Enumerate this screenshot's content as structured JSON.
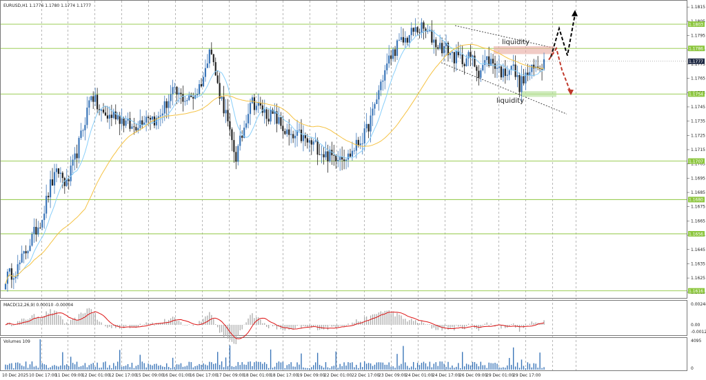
{
  "header": {
    "symbol_info": "EURUSD,H1  1.1776 1.1780 1.1774 1.1777"
  },
  "colors": {
    "bull": "#3a75b8",
    "bear": "#222222",
    "ma_fast": "#87cefa",
    "ma_slow": "#f5c242",
    "level": "#8dc63f",
    "macd_signal": "#d11",
    "volume": "#3a75b8",
    "arrow_up": "#000000",
    "arrow_down": "#c0392b"
  },
  "chart_data": [
    {
      "type": "candlestick",
      "title": "EURUSD,H1",
      "x_ticks": [
        "10 Dec 2025",
        "10 Dec 17:00",
        "11 Dec 09:00",
        "12 Dec 01:00",
        "12 Dec 17:00",
        "15 Dec 09:00",
        "16 Dec 01:00",
        "16 Dec 17:00",
        "17 Dec 09:00",
        "18 Dec 01:00",
        "18 Dec 17:00",
        "19 Dec 09:00",
        "22 Dec 01:00",
        "22 Dec 17:00",
        "23 Dec 09:00",
        "24 Dec 01:00",
        "24 Dec 17:00",
        "26 Dec 09:00",
        "29 Dec 01:00",
        "29 Dec 17:00"
      ],
      "y_ticks": [
        "1.1815",
        "1.1805",
        "1.1795",
        "1.1785",
        "1.1775",
        "1.1765",
        "1.1755",
        "1.1745",
        "1.1735",
        "1.1725",
        "1.1715",
        "1.1705",
        "1.1695",
        "1.1685",
        "1.1675",
        "1.1665",
        "1.1655",
        "1.1645",
        "1.1635",
        "1.1625",
        "1.1615"
      ],
      "ylim": [
        1.1612,
        1.1818
      ],
      "price_tags": [
        "1.1803",
        "1.1786",
        "1.1777",
        "1.1754",
        "1.1707",
        "1.1680",
        "1.1656",
        "1.1616"
      ],
      "levels": [
        1.1803,
        1.1786,
        1.1754,
        1.1707,
        1.168,
        1.1656,
        1.1616
      ],
      "current_price": 1.1777,
      "close_path": [
        [
          0,
          1.1625
        ],
        [
          6,
          1.1632
        ],
        [
          12,
          1.165
        ],
        [
          18,
          1.1668
        ],
        [
          22,
          1.169
        ],
        [
          26,
          1.17
        ],
        [
          30,
          1.169
        ],
        [
          34,
          1.1708
        ],
        [
          38,
          1.173
        ],
        [
          42,
          1.1755
        ],
        [
          46,
          1.1742
        ],
        [
          50,
          1.1738
        ],
        [
          54,
          1.174
        ],
        [
          58,
          1.1735
        ],
        [
          62,
          1.173
        ],
        [
          66,
          1.1735
        ],
        [
          70,
          1.174
        ],
        [
          74,
          1.1735
        ],
        [
          78,
          1.1745
        ],
        [
          82,
          1.1755
        ],
        [
          86,
          1.1752
        ],
        [
          90,
          1.175
        ],
        [
          94,
          1.1756
        ],
        [
          98,
          1.177
        ],
        [
          100,
          1.179
        ],
        [
          104,
          1.176
        ],
        [
          108,
          1.174
        ],
        [
          110,
          1.1725
        ],
        [
          113,
          1.171
        ],
        [
          116,
          1.1725
        ],
        [
          120,
          1.175
        ],
        [
          124,
          1.1745
        ],
        [
          128,
          1.174
        ],
        [
          132,
          1.1738
        ],
        [
          136,
          1.173
        ],
        [
          140,
          1.1722
        ],
        [
          144,
          1.1725
        ],
        [
          148,
          1.172
        ],
        [
          152,
          1.1718
        ],
        [
          156,
          1.1712
        ],
        [
          160,
          1.171
        ],
        [
          164,
          1.1712
        ],
        [
          168,
          1.171
        ],
        [
          172,
          1.1718
        ],
        [
          176,
          1.1725
        ],
        [
          180,
          1.174
        ],
        [
          184,
          1.1762
        ],
        [
          188,
          1.1778
        ],
        [
          192,
          1.1788
        ],
        [
          196,
          1.1792
        ],
        [
          200,
          1.1798
        ],
        [
          204,
          1.18
        ],
        [
          208,
          1.1795
        ],
        [
          212,
          1.1788
        ],
        [
          216,
          1.1786
        ],
        [
          220,
          1.178
        ],
        [
          224,
          1.1778
        ],
        [
          228,
          1.178
        ],
        [
          232,
          1.177
        ],
        [
          236,
          1.1778
        ],
        [
          240,
          1.1775
        ],
        [
          244,
          1.1768
        ],
        [
          248,
          1.1775
        ],
        [
          252,
          1.176
        ],
        [
          256,
          1.1768
        ],
        [
          260,
          1.1772
        ],
        [
          264,
          1.1777
        ]
      ]
    },
    {
      "type": "line",
      "title": "MACD(12,26,9) 0.00010 -0.00004",
      "y_ticks": [
        "0.00248",
        "0.00",
        "-0.00127"
      ]
    },
    {
      "type": "bar",
      "title": "Volumes 109",
      "y_ticks": [
        "4095",
        "0"
      ]
    }
  ],
  "annotations": {
    "liquidity_top": "liquidity",
    "liquidity_bottom": "liquidity"
  }
}
